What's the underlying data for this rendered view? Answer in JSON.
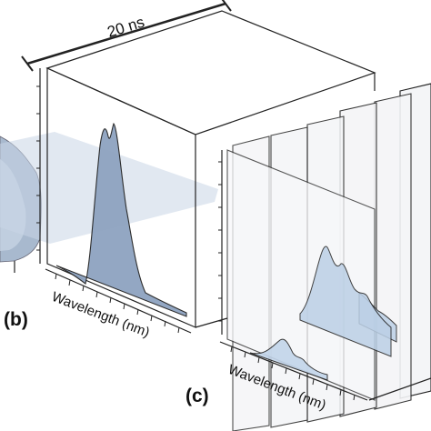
{
  "figure": {
    "duration_label": "20 ns",
    "panel_b": {
      "letter": "(b)",
      "axis_label": "Wavelength (nm)"
    },
    "panel_c": {
      "letter": "(c)",
      "axis_label": "Wavelength (nm)"
    }
  },
  "colors": {
    "line": "#222222",
    "peak_fill": "#8ea3c0",
    "frame_fill": "#f2f4f7",
    "slab_fill": "#bcd0e6"
  }
}
